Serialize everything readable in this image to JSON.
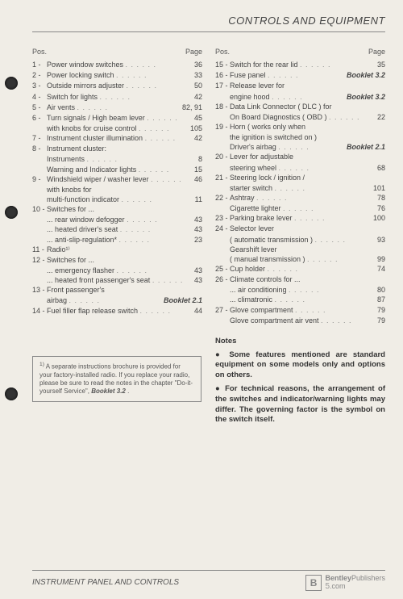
{
  "header": "CONTROLS AND EQUIPMENT",
  "col_head": {
    "pos": "Pos.",
    "page": "Page"
  },
  "left": [
    {
      "n": "1 -",
      "t": "Power window switches",
      "p": "36"
    },
    {
      "n": "2 -",
      "t": "Power locking switch",
      "p": "33"
    },
    {
      "n": "3 -",
      "t": "Outside mirrors adjuster",
      "p": "50"
    },
    {
      "n": "4 -",
      "t": "Switch for lights",
      "p": "42"
    },
    {
      "n": "5 -",
      "t": "Air vents",
      "p": "82, 91"
    },
    {
      "n": "6 -",
      "t": "Turn signals / High beam lever",
      "p": "45"
    },
    {
      "n": "",
      "t": "with knobs for cruise control",
      "p": "105",
      "sub": true
    },
    {
      "n": "7 -",
      "t": "Instrument cluster illumination",
      "p": "42"
    },
    {
      "n": "8 -",
      "t": "Instrument cluster:",
      "p": ""
    },
    {
      "n": "",
      "t": "Instruments",
      "p": "8",
      "sub": true
    },
    {
      "n": "",
      "t": "Warning and Indicator lights",
      "p": "15",
      "sub": true
    },
    {
      "n": "9 -",
      "t": "Windshield wiper / washer lever",
      "p": "46"
    },
    {
      "n": "",
      "t": "with knobs for",
      "p": "",
      "sub": true
    },
    {
      "n": "",
      "t": "multi-function indicator",
      "p": "11",
      "sub": true
    },
    {
      "n": "10 -",
      "t": "Switches for ...",
      "p": ""
    },
    {
      "n": "",
      "t": "... rear window defogger",
      "p": "43",
      "sub": true
    },
    {
      "n": "",
      "t": "... heated driver's seat",
      "p": "43",
      "sub": true
    },
    {
      "n": "",
      "t": "... anti-slip-regulation*",
      "p": "23",
      "sub": true
    },
    {
      "n": "11 -",
      "t": "Radio¹⁾",
      "p": ""
    },
    {
      "n": "12 -",
      "t": "Switches for ...",
      "p": ""
    },
    {
      "n": "",
      "t": "... emergency flasher",
      "p": "43",
      "sub": true
    },
    {
      "n": "",
      "t": "... heated front passenger's seat",
      "p": "43",
      "sub": true
    },
    {
      "n": "13 -",
      "t": "Front passenger's",
      "p": ""
    },
    {
      "n": "",
      "t": "airbag",
      "p": "Booklet 2.1",
      "sub": true,
      "bold": true
    },
    {
      "n": "14 -",
      "t": "Fuel filler flap release switch",
      "p": "44"
    }
  ],
  "right": [
    {
      "n": "15 -",
      "t": "Switch for the rear lid",
      "p": "35"
    },
    {
      "n": "16 -",
      "t": "Fuse panel",
      "p": "Booklet 3.2",
      "bold": true
    },
    {
      "n": "17 -",
      "t": "Release lever for",
      "p": ""
    },
    {
      "n": "",
      "t": "engine hood",
      "p": "Booklet 3.2",
      "sub": true,
      "bold": true
    },
    {
      "n": "18 -",
      "t": "Data Link Connector ( DLC ) for",
      "p": ""
    },
    {
      "n": "",
      "t": "On Board Diagnostics ( OBD )",
      "p": "22",
      "sub": true
    },
    {
      "n": "19 -",
      "t": "Horn ( works only when",
      "p": ""
    },
    {
      "n": "",
      "t": "the ignition is switched on )",
      "p": "",
      "sub": true
    },
    {
      "n": "",
      "t": "Driver's airbag",
      "p": "Booklet 2.1",
      "sub": true,
      "bold": true
    },
    {
      "n": "20 -",
      "t": "Lever for adjustable",
      "p": ""
    },
    {
      "n": "",
      "t": "steering wheel",
      "p": "68",
      "sub": true
    },
    {
      "n": "21 -",
      "t": "Steering lock / ignition /",
      "p": ""
    },
    {
      "n": "",
      "t": "starter switch",
      "p": "101",
      "sub": true
    },
    {
      "n": "22 -",
      "t": "Ashtray",
      "p": "78"
    },
    {
      "n": "",
      "t": "Cigarette lighter",
      "p": "76",
      "sub": true
    },
    {
      "n": "23 -",
      "t": "Parking brake lever",
      "p": "100"
    },
    {
      "n": "24 -",
      "t": "Selector lever",
      "p": ""
    },
    {
      "n": "",
      "t": "( automatic transmission )",
      "p": "93",
      "sub": true
    },
    {
      "n": "",
      "t": "Gearshift lever",
      "p": "",
      "sub": true
    },
    {
      "n": "",
      "t": "( manual transmission )",
      "p": "99",
      "sub": true
    },
    {
      "n": "25 -",
      "t": "Cup holder",
      "p": "74"
    },
    {
      "n": "26 -",
      "t": "Climate controls for ...",
      "p": ""
    },
    {
      "n": "",
      "t": "... air conditioning",
      "p": "80",
      "sub": true
    },
    {
      "n": "",
      "t": "... climatronic",
      "p": "87",
      "sub": true
    },
    {
      "n": "27 -",
      "t": "Glove compartment",
      "p": "79"
    },
    {
      "n": "",
      "t": "Glove compartment air vent",
      "p": "79",
      "sub": true
    }
  ],
  "footnote": {
    "marker": "1)",
    "text": "A separate instructions brochure is provided for your factory-installed radio. If you replace your radio, please be sure to read the notes in the chapter \"Do-it-yourself Service\", ",
    "ref": "Booklet 3.2"
  },
  "notes": {
    "title": "Notes",
    "p1": "Some features mentioned are standard equipment on some models only and options on others.",
    "p2": "For technical reasons, the arrangement of the switches and indicator/warning lights may differ. The governing factor is the symbol on the switch itself."
  },
  "footer": {
    "section": "INSTRUMENT PANEL AND CONTROLS",
    "publisher": "Publishers",
    "brand": "Bentley",
    "b": "B",
    "dotcom": ".com",
    "page": "5"
  },
  "holes": [
    95,
    255,
    480
  ]
}
